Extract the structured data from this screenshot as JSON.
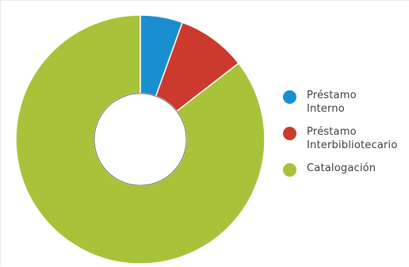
{
  "chart_data": {
    "type": "pie",
    "donut": true,
    "title": "",
    "categories": [
      "Préstamo\nInterno",
      "Préstamo\nInterbibliotecario",
      "Catalogación"
    ],
    "values": [
      5.5,
      9.0,
      85.5
    ],
    "colors": [
      "#1a8fcf",
      "#cc3a2e",
      "#a8c23a"
    ],
    "legend_position": "right"
  },
  "colors": {
    "background": "#ffffff",
    "slice_border": "#ffffff",
    "legend_text": "#3c3c3c"
  }
}
